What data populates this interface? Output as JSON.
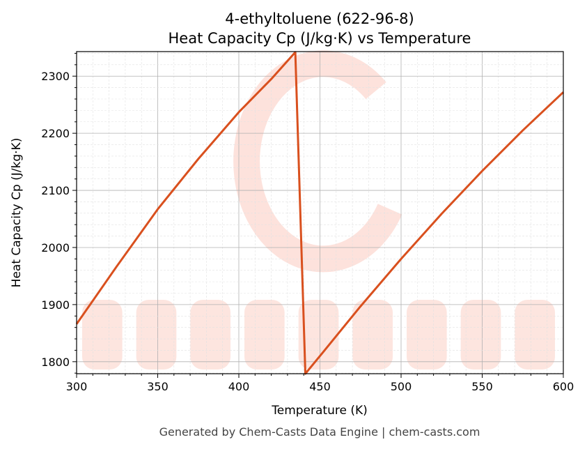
{
  "chart_data": {
    "type": "line",
    "title": "4-ethyltoluene (622-96-8)",
    "subtitle": "Heat Capacity Cp (J/kg·K) vs Temperature",
    "xlabel": "Temperature (K)",
    "ylabel": "Heat Capacity Cp (J/kg·K)",
    "xlim": [
      300,
      600
    ],
    "ylim": [
      1779,
      2343
    ],
    "xticks": [
      300,
      350,
      400,
      450,
      500,
      550,
      600
    ],
    "yticks": [
      1800,
      1900,
      2000,
      2100,
      2200,
      2300
    ],
    "grid": true,
    "series": [
      {
        "color": "#d9501e",
        "x": [
          300,
          325,
          350,
          375,
          400,
          420,
          434.8,
          441,
          450,
          475,
          500,
          525,
          550,
          575,
          600
        ],
        "y": [
          1866,
          1968,
          2067,
          2155,
          2237,
          2295,
          2342,
          1779,
          1810,
          1897,
          1980,
          2059,
          2134,
          2205,
          2272
        ]
      }
    ],
    "footer": "Generated by Chem-Casts Data Engine | chem-casts.com",
    "watermark": "CHEMCASTS"
  }
}
